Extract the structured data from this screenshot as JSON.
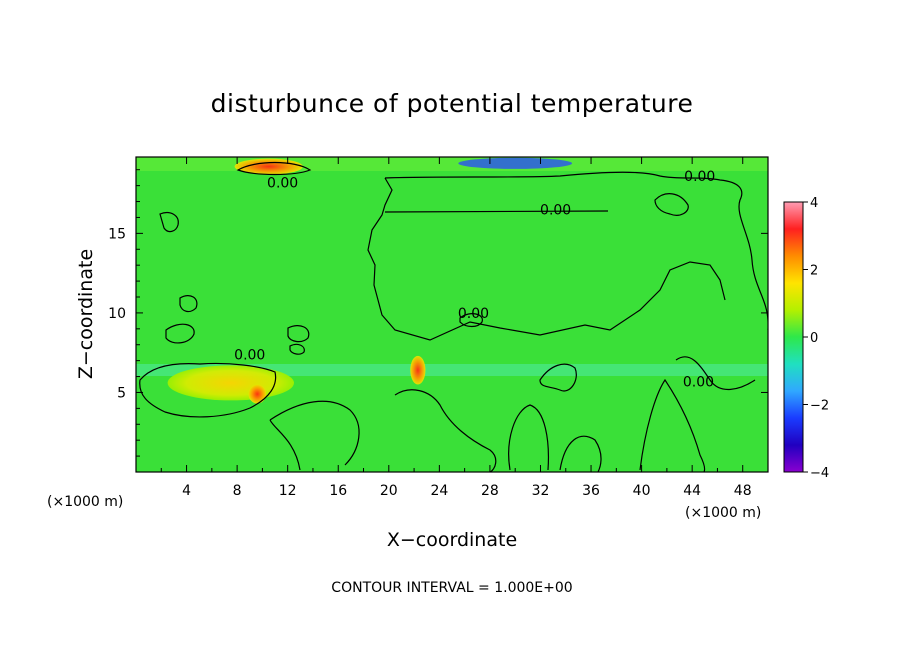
{
  "chart_data": {
    "type": "heatmap",
    "title": "disturbunce of potential temperature",
    "xlabel": "X−coordinate",
    "ylabel": "Z−coordinate",
    "x_unit_left": "(×1000 m)",
    "x_unit_right": "(×1000 m)",
    "xlim": [
      0,
      50
    ],
    "ylim": [
      0,
      19.8
    ],
    "x_ticks": [
      4,
      8,
      12,
      16,
      20,
      24,
      28,
      32,
      36,
      40,
      44,
      48
    ],
    "y_ticks": [
      5,
      10,
      15
    ],
    "colorbar": {
      "range": [
        -4,
        4
      ],
      "ticks": [
        "4",
        "2",
        "0",
        "−2",
        "−4"
      ],
      "colors": [
        "#ff9db4",
        "#ff2020",
        "#ff8c00",
        "#ffe400",
        "#b4f000",
        "#2ee84a",
        "#20e0c0",
        "#30a8ff",
        "#1a3cff",
        "#2000c0",
        "#8a00d0"
      ]
    },
    "contour_interval_text": "CONTOUR INTERVAL = 1.000E+00",
    "contour_labels": [
      {
        "text": "0.00",
        "x": 11.6,
        "y": 18.2
      },
      {
        "text": "0.00",
        "x": 33.2,
        "y": 16.5
      },
      {
        "text": "0.00",
        "x": 44.6,
        "y": 18.6
      },
      {
        "text": "0.00",
        "x": 26.7,
        "y": 10.0
      },
      {
        "text": "0.00",
        "x": 9.0,
        "y": 7.4
      },
      {
        "text": "0.00",
        "x": 44.5,
        "y": 5.7
      }
    ],
    "features": [
      {
        "kind": "warm",
        "value": 3.0,
        "x": 10.5,
        "y": 19.2,
        "rx": 2.7,
        "ry": 0.5
      },
      {
        "kind": "cold",
        "value": -2.5,
        "x": 30.0,
        "y": 19.4,
        "rx": 4.5,
        "ry": 0.35
      },
      {
        "kind": "warm",
        "value": 1.2,
        "x": 7.5,
        "y": 5.6,
        "rx": 5.0,
        "ry": 1.1
      },
      {
        "kind": "warm",
        "value": 3.0,
        "x": 9.6,
        "y": 4.9,
        "rx": 0.7,
        "ry": 0.6
      },
      {
        "kind": "warm",
        "value": 2.5,
        "x": 22.3,
        "y": 6.4,
        "rx": 0.6,
        "ry": 0.9
      }
    ]
  }
}
